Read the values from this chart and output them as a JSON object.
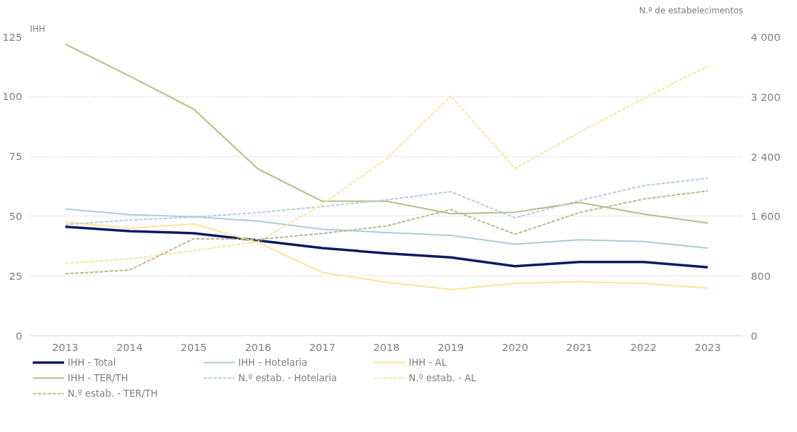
{
  "chart_data": {
    "type": "line",
    "ylabel": "IHH",
    "y2label": "N.º de estabelecimentos",
    "categories": [
      "2013",
      "2014",
      "2015",
      "2016",
      "2017",
      "2018",
      "2019",
      "2020",
      "2021",
      "2022",
      "2023"
    ],
    "series": [
      {
        "name": "IHH - Total",
        "color": "#0d1a63",
        "values": [
          45.6,
          43.8,
          42.9,
          39.9,
          36.7,
          34.5,
          32.8,
          29.1,
          30.9,
          30.9,
          28.7
        ]
      },
      {
        "name": "IHH - Hotelaria",
        "color": "#a8cdd6",
        "values": [
          53.1,
          50.7,
          49.8,
          48,
          44.6,
          43.2,
          42,
          38.3,
          40.2,
          39.4,
          36.7
        ]
      },
      {
        "name": "IHH - AL",
        "color": "#fbe49a",
        "values": [
          47.6,
          45,
          46.8,
          39,
          26.5,
          22.4,
          19.4,
          21.9,
          22.6,
          21.9,
          20
        ]
      },
      {
        "name": "IHH - TER/TH",
        "color": "#b4bd85",
        "values": [
          122,
          108.7,
          94.8,
          69.8,
          56.3,
          56.3,
          51.1,
          51.7,
          55.8,
          50.9,
          47.2
        ]
      },
      {
        "name": "N.º estab. - Hotelaria",
        "color": "#b5d0d6",
        "axis": "y2",
        "line_style": "dashed",
        "values": [
          1490,
          1550,
          1590,
          1650,
          1730,
          1820,
          1930,
          1580,
          1810,
          2010,
          2110
        ]
      },
      {
        "name": "N.º estab. - AL",
        "color": "#fbe6a0",
        "axis": "y2",
        "line_style": "dashed",
        "values": [
          970,
          1030,
          1140,
          1260,
          1760,
          2370,
          3210,
          2240,
          2720,
          3180,
          3610
        ]
      },
      {
        "name": "N.º estab. - TER/TH",
        "color": "#b9b98c",
        "axis": "y2",
        "line_style": "dashed",
        "values": [
          830,
          880,
          1300,
          1290,
          1370,
          1470,
          1690,
          1360,
          1650,
          1830,
          1940
        ]
      }
    ],
    "ylim": [
      0,
      125
    ],
    "yticks": [
      0,
      25,
      50,
      75,
      100,
      125
    ],
    "y2lim": [
      0,
      4000
    ],
    "y2ticks": [
      0,
      800,
      {
        "value": 1600,
        "label": "1 600"
      },
      {
        "value": 2400,
        "label": "2 400"
      },
      {
        "value": 3200,
        "label": "3 200"
      },
      {
        "value": 4000,
        "label": "4 000"
      }
    ],
    "grid": "y",
    "legend": "bottom",
    "line_style": "solid",
    "marker": "none"
  }
}
